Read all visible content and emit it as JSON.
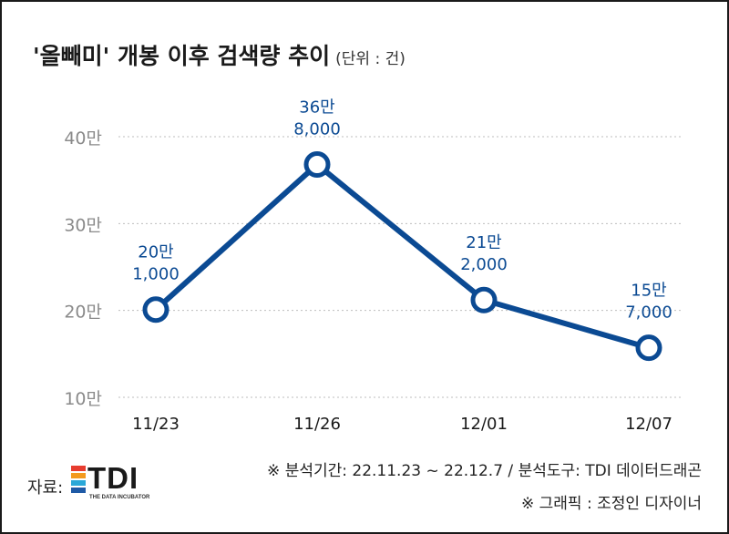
{
  "title": {
    "main": "'올빼미' 개봉 이후 검색량 추이",
    "unit": "(단위 : 건)"
  },
  "chart_data": {
    "type": "line",
    "title": "'올빼미' 개봉 이후 검색량 추이",
    "unit": "(단위 : 건)",
    "categories": [
      "11/23",
      "11/26",
      "12/01",
      "12/07"
    ],
    "values": [
      201000,
      368000,
      212000,
      157000
    ],
    "data_labels": [
      [
        "20만",
        "1,000"
      ],
      [
        "36만",
        "8,000"
      ],
      [
        "21만",
        "2,000"
      ],
      [
        "15만",
        "7,000"
      ]
    ],
    "yticks": [
      100000,
      200000,
      300000,
      400000
    ],
    "ytick_labels": [
      "10만",
      "20만",
      "30만",
      "40만"
    ],
    "ylim": [
      100000,
      400000
    ],
    "grid": true,
    "line_color": "#0b4a93",
    "marker_fill": "#ffffff"
  },
  "footer": {
    "source_note": "※ 분석기간: 22.11.23 ~ 22.12.7 / 분석도구: TDI 데이터드래곤",
    "credit": "※ 그래픽 : 조정인 디자이너",
    "source_label": "자료:",
    "logo_text": "TDI",
    "logo_tagline": "THE DATA INCUBATOR",
    "logo_colors": [
      "#e73c2f",
      "#f39a1f",
      "#2aa8d8",
      "#1f5aa6"
    ]
  }
}
